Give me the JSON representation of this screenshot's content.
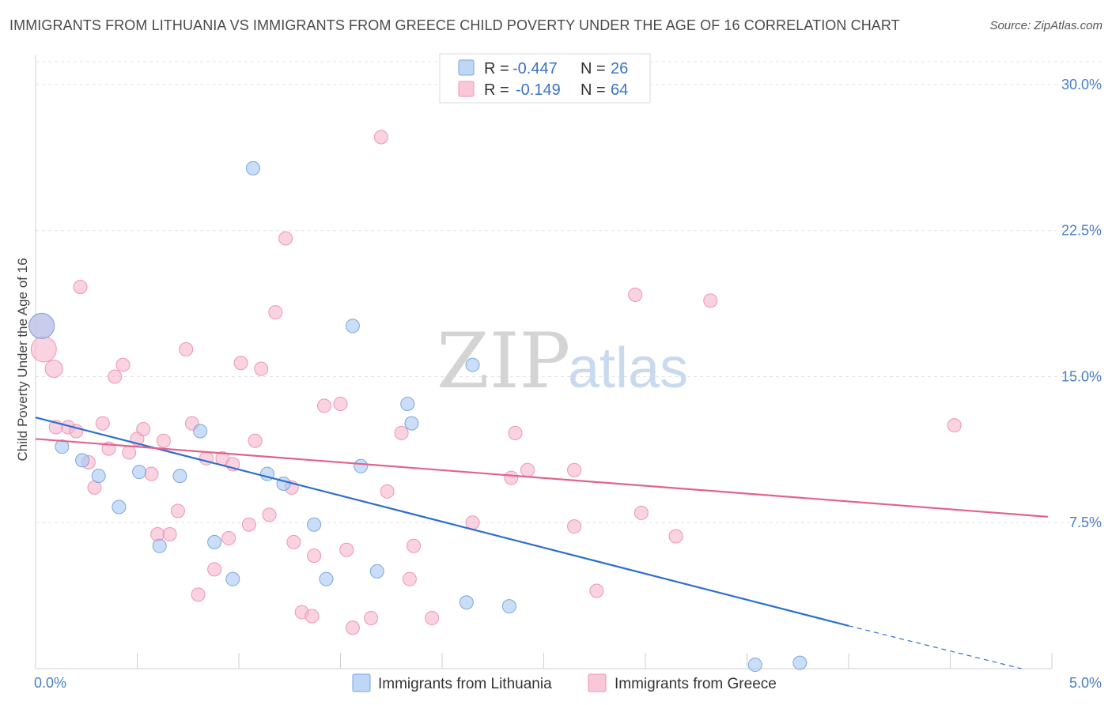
{
  "header": {
    "title": "IMMIGRANTS FROM LITHUANIA VS IMMIGRANTS FROM GREECE CHILD POVERTY UNDER THE AGE OF 16 CORRELATION CHART",
    "source": "Source: ZipAtlas.com"
  },
  "watermark": {
    "zip": "ZIP",
    "atlas": "atlas"
  },
  "legend_box": [
    {
      "r_label": "R =",
      "r_value": "-0.447",
      "n_label": "N =",
      "n_value": "26",
      "color": "#a9c8f2"
    },
    {
      "r_label": "R =",
      "r_value": "-0.149",
      "n_label": "N =",
      "n_value": "64",
      "color": "#f7b6cb"
    }
  ],
  "chart_data": {
    "type": "scatter",
    "title": "IMMIGRANTS FROM LITHUANIA VS IMMIGRANTS FROM GREECE CHILD POVERTY UNDER THE AGE OF 16 CORRELATION CHART",
    "xlabel": "",
    "ylabel": "Child Poverty Under the Age of 16",
    "xlim": [
      0,
      5
    ],
    "ylim": [
      0,
      31.5
    ],
    "x_tick_labels": [
      "0.0%",
      "5.0%"
    ],
    "y_ticks": [
      7.5,
      15.0,
      22.5,
      30.0
    ],
    "y_tick_labels": [
      "7.5%",
      "15.0%",
      "22.5%",
      "30.0%"
    ],
    "grid": true,
    "legend_position": "bottom",
    "series": [
      {
        "name": "Immigrants from Lithuania",
        "color": "#a9c8f2",
        "stroke": "#7aa6e0",
        "trend_color": "#2f6fcf",
        "trend": {
          "x0": 0.0,
          "y0": 12.9,
          "x1": 4.0,
          "y1": 2.2,
          "dash_to_x": 4.85,
          "dash_to_y": 0.0
        },
        "points": [
          {
            "x": 0.03,
            "y": 17.6,
            "big": true
          },
          {
            "x": 0.13,
            "y": 11.4
          },
          {
            "x": 0.23,
            "y": 10.7
          },
          {
            "x": 0.31,
            "y": 9.9
          },
          {
            "x": 0.41,
            "y": 8.3
          },
          {
            "x": 0.51,
            "y": 10.1
          },
          {
            "x": 0.61,
            "y": 6.3
          },
          {
            "x": 0.71,
            "y": 9.9
          },
          {
            "x": 0.81,
            "y": 12.2
          },
          {
            "x": 0.88,
            "y": 6.5
          },
          {
            "x": 0.97,
            "y": 4.6
          },
          {
            "x": 1.07,
            "y": 25.7
          },
          {
            "x": 1.14,
            "y": 10.0
          },
          {
            "x": 1.22,
            "y": 9.5
          },
          {
            "x": 1.37,
            "y": 7.4
          },
          {
            "x": 1.43,
            "y": 4.6
          },
          {
            "x": 1.56,
            "y": 17.6
          },
          {
            "x": 1.6,
            "y": 10.4
          },
          {
            "x": 1.68,
            "y": 5.0
          },
          {
            "x": 1.83,
            "y": 13.6
          },
          {
            "x": 1.85,
            "y": 12.6
          },
          {
            "x": 2.12,
            "y": 3.4
          },
          {
            "x": 2.15,
            "y": 15.6
          },
          {
            "x": 2.33,
            "y": 3.2
          },
          {
            "x": 3.54,
            "y": 0.2
          },
          {
            "x": 3.76,
            "y": 0.3
          }
        ]
      },
      {
        "name": "Immigrants from Greece",
        "color": "#f7b6cb",
        "stroke": "#ef95b2",
        "trend_color": "#e2628f",
        "trend": {
          "x0": 0.0,
          "y0": 11.8,
          "x1": 4.98,
          "y1": 7.8
        },
        "points": [
          {
            "x": 0.03,
            "y": 17.6,
            "big": true
          },
          {
            "x": 0.04,
            "y": 16.4,
            "big": true
          },
          {
            "x": 0.09,
            "y": 15.4,
            "mid": true
          },
          {
            "x": 0.1,
            "y": 12.4
          },
          {
            "x": 0.16,
            "y": 12.4
          },
          {
            "x": 0.2,
            "y": 12.2
          },
          {
            "x": 0.22,
            "y": 19.6
          },
          {
            "x": 0.26,
            "y": 10.6
          },
          {
            "x": 0.29,
            "y": 9.3
          },
          {
            "x": 0.33,
            "y": 12.6
          },
          {
            "x": 0.36,
            "y": 11.3
          },
          {
            "x": 0.39,
            "y": 15.0
          },
          {
            "x": 0.43,
            "y": 15.6
          },
          {
            "x": 0.46,
            "y": 11.1
          },
          {
            "x": 0.5,
            "y": 11.8
          },
          {
            "x": 0.53,
            "y": 12.3
          },
          {
            "x": 0.57,
            "y": 10.0
          },
          {
            "x": 0.6,
            "y": 6.9
          },
          {
            "x": 0.63,
            "y": 11.7
          },
          {
            "x": 0.66,
            "y": 6.9
          },
          {
            "x": 0.7,
            "y": 8.1
          },
          {
            "x": 0.74,
            "y": 16.4
          },
          {
            "x": 0.77,
            "y": 12.6
          },
          {
            "x": 0.8,
            "y": 3.8
          },
          {
            "x": 0.84,
            "y": 10.8
          },
          {
            "x": 0.88,
            "y": 5.1
          },
          {
            "x": 0.92,
            "y": 10.8
          },
          {
            "x": 0.95,
            "y": 6.7
          },
          {
            "x": 0.97,
            "y": 10.5
          },
          {
            "x": 1.01,
            "y": 15.7
          },
          {
            "x": 1.05,
            "y": 7.4
          },
          {
            "x": 1.08,
            "y": 11.7
          },
          {
            "x": 1.11,
            "y": 15.4
          },
          {
            "x": 1.15,
            "y": 7.9
          },
          {
            "x": 1.18,
            "y": 18.3
          },
          {
            "x": 1.23,
            "y": 22.1
          },
          {
            "x": 1.26,
            "y": 9.3
          },
          {
            "x": 1.27,
            "y": 6.5
          },
          {
            "x": 1.31,
            "y": 2.9
          },
          {
            "x": 1.36,
            "y": 2.7
          },
          {
            "x": 1.37,
            "y": 5.8
          },
          {
            "x": 1.42,
            "y": 13.5
          },
          {
            "x": 1.5,
            "y": 13.6
          },
          {
            "x": 1.53,
            "y": 6.1
          },
          {
            "x": 1.56,
            "y": 2.1
          },
          {
            "x": 1.65,
            "y": 2.6
          },
          {
            "x": 1.7,
            "y": 27.3
          },
          {
            "x": 1.73,
            "y": 9.1
          },
          {
            "x": 1.8,
            "y": 12.1
          },
          {
            "x": 1.84,
            "y": 4.6
          },
          {
            "x": 1.86,
            "y": 6.3
          },
          {
            "x": 1.95,
            "y": 2.6
          },
          {
            "x": 2.15,
            "y": 7.5
          },
          {
            "x": 2.34,
            "y": 9.8
          },
          {
            "x": 2.36,
            "y": 12.1
          },
          {
            "x": 2.42,
            "y": 10.2
          },
          {
            "x": 2.65,
            "y": 7.3
          },
          {
            "x": 2.65,
            "y": 10.2
          },
          {
            "x": 2.76,
            "y": 4.0
          },
          {
            "x": 2.95,
            "y": 19.2
          },
          {
            "x": 2.98,
            "y": 8.0
          },
          {
            "x": 3.15,
            "y": 6.8
          },
          {
            "x": 3.32,
            "y": 18.9
          },
          {
            "x": 4.52,
            "y": 12.5
          }
        ]
      }
    ]
  }
}
